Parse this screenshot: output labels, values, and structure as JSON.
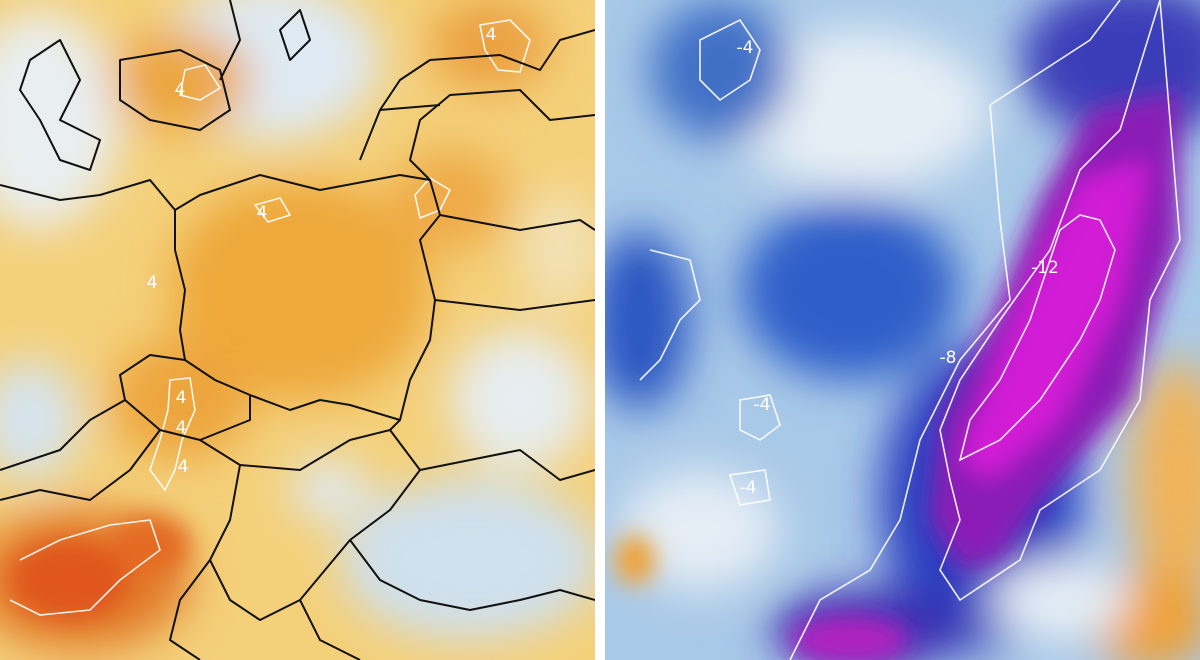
{
  "left_map": {
    "labels": [
      "4",
      "4",
      "4",
      "4",
      "4",
      "4",
      "4"
    ]
  },
  "right_map": {
    "labels": [
      "-4",
      "-12",
      "-8",
      "-4",
      "-4"
    ]
  }
}
